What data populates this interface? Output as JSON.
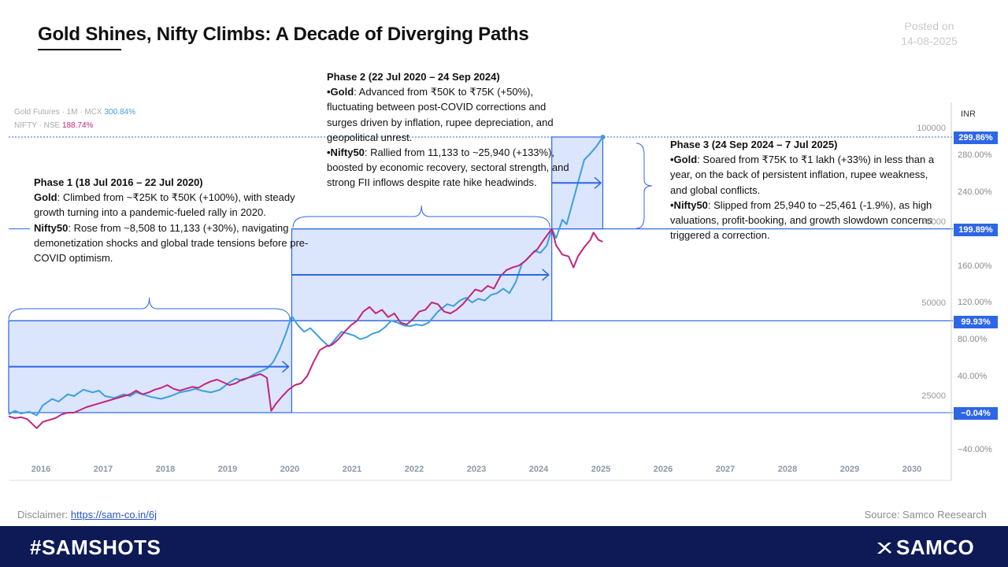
{
  "header": {
    "title": "Gold Shines, Nifty Climbs: A Decade of Diverging Paths",
    "posted_label": "Posted on",
    "posted_date": "14-08-2025"
  },
  "legend": {
    "gold_label": "Gold Futures · 1M · MCX",
    "gold_value": "300.84%",
    "nifty_label": "NIFTY · NSE",
    "nifty_value": "188.74%"
  },
  "phases": {
    "p1": {
      "title": "Phase 1 (18 Jul 2016 – 22 Jul 2020)",
      "gold_label": "Gold",
      "gold_text": ": Climbed from  ~₹25K to ₹50K (+100%), with steady growth turning into a pandemic-fueled rally in 2020.",
      "nifty_label": "Nifty50",
      "nifty_text": ": Rose from ~8,508 to 11,133 (+30%), navigating demonetization shocks and global trade tensions before pre-COVID optimism."
    },
    "p2": {
      "title": "Phase 2 (22 Jul 2020 – 24 Sep 2024)",
      "gold_label": "•Gold",
      "gold_text": ": Advanced from ₹50K to ₹75K (+50%), fluctuating between post-COVID corrections and surges driven by inflation, rupee depreciation, and geopolitical unrest.",
      "nifty_label": "•Nifty50",
      "nifty_text": ": Rallied from 11,133 to ~25,940 (+133%), boosted by economic recovery, sectoral strength, and strong FII inflows despite rate hike headwinds."
    },
    "p3": {
      "title": "Phase 3 (24 Sep 2024 – 7 Jul 2025)",
      "gold_label": "•Gold",
      "gold_text": ": Soared from ₹75K to ₹1 lakh (+33%) in less than a year, on the back of persistent inflation, rupee weakness, and global conflicts.",
      "nifty_label": "•Nifty50",
      "nifty_text": ": Slipped from 25,940 to ~25,461 (-1.9%), as high valuations, profit-booking,  and growth slowdown concerns triggered a correction."
    }
  },
  "footer": {
    "disclaimer_label": "Disclaimer: ",
    "disclaimer_link": "https://sam-co.in/6j",
    "source": "Source: Samco Reesearch",
    "hashtag": "#SAMSHOTS",
    "brand": "SAMCO"
  },
  "chart_data": {
    "type": "line",
    "currency": "INR",
    "x_ticks": [
      "2016",
      "2017",
      "2018",
      "2019",
      "2020",
      "2021",
      "2022",
      "2023",
      "2024",
      "2025",
      "2026",
      "2027",
      "2028",
      "2029",
      "2030"
    ],
    "price_levels": [
      "100000",
      "75000",
      "50000",
      "25000"
    ],
    "pct_tags": [
      "299.86%",
      "199.89%",
      "99.93%",
      "−0.04%"
    ],
    "pct_ticks": [
      "280.00%",
      "240.00%",
      "160.00%",
      "120.00%",
      "80.00%",
      "40.00%",
      "−40.00%"
    ],
    "ylim_pct": [
      -45,
      320
    ],
    "colors": {
      "gold": "#3d9ee0",
      "nifty": "#c2257a",
      "accent": "#2d66e6",
      "band": "#dbe5fb"
    },
    "series": [
      {
        "name": "Gold Futures · 1M · MCX",
        "unit": "% change",
        "points": [
          [
            2016.0,
            -2
          ],
          [
            2016.1,
            2
          ],
          [
            2016.2,
            -1
          ],
          [
            2016.33,
            1
          ],
          [
            2016.45,
            -3
          ],
          [
            2016.55,
            8
          ],
          [
            2016.7,
            15
          ],
          [
            2016.8,
            12
          ],
          [
            2016.95,
            20
          ],
          [
            2017.05,
            18
          ],
          [
            2017.2,
            25
          ],
          [
            2017.35,
            22
          ],
          [
            2017.45,
            24
          ],
          [
            2017.55,
            18
          ],
          [
            2017.7,
            16
          ],
          [
            2017.85,
            20
          ],
          [
            2017.95,
            18
          ],
          [
            2018.05,
            22
          ],
          [
            2018.15,
            20
          ],
          [
            2018.3,
            17
          ],
          [
            2018.45,
            15
          ],
          [
            2018.6,
            18
          ],
          [
            2018.75,
            22
          ],
          [
            2018.9,
            24
          ],
          [
            2019.0,
            26
          ],
          [
            2019.1,
            24
          ],
          [
            2019.25,
            22
          ],
          [
            2019.4,
            25
          ],
          [
            2019.55,
            33
          ],
          [
            2019.65,
            37
          ],
          [
            2019.75,
            35
          ],
          [
            2019.85,
            38
          ],
          [
            2019.95,
            42
          ],
          [
            2020.05,
            45
          ],
          [
            2020.15,
            48
          ],
          [
            2020.25,
            55
          ],
          [
            2020.35,
            68
          ],
          [
            2020.45,
            85
          ],
          [
            2020.55,
            105
          ],
          [
            2020.65,
            95
          ],
          [
            2020.75,
            88
          ],
          [
            2020.85,
            92
          ],
          [
            2020.95,
            85
          ],
          [
            2021.05,
            78
          ],
          [
            2021.15,
            72
          ],
          [
            2021.25,
            80
          ],
          [
            2021.35,
            88
          ],
          [
            2021.45,
            86
          ],
          [
            2021.55,
            84
          ],
          [
            2021.65,
            80
          ],
          [
            2021.75,
            82
          ],
          [
            2021.85,
            86
          ],
          [
            2021.95,
            88
          ],
          [
            2022.05,
            93
          ],
          [
            2022.15,
            100
          ],
          [
            2022.25,
            98
          ],
          [
            2022.35,
            95
          ],
          [
            2022.45,
            94
          ],
          [
            2022.55,
            96
          ],
          [
            2022.65,
            95
          ],
          [
            2022.75,
            98
          ],
          [
            2022.9,
            110
          ],
          [
            2023.05,
            118
          ],
          [
            2023.15,
            116
          ],
          [
            2023.25,
            122
          ],
          [
            2023.35,
            125
          ],
          [
            2023.45,
            120
          ],
          [
            2023.55,
            124
          ],
          [
            2023.65,
            122
          ],
          [
            2023.75,
            128
          ],
          [
            2023.85,
            130
          ],
          [
            2023.95,
            135
          ],
          [
            2024.05,
            130
          ],
          [
            2024.15,
            142
          ],
          [
            2024.25,
            162
          ],
          [
            2024.35,
            168
          ],
          [
            2024.45,
            176
          ],
          [
            2024.55,
            174
          ],
          [
            2024.65,
            182
          ],
          [
            2024.73,
            200
          ],
          [
            2024.8,
            190
          ],
          [
            2024.9,
            210
          ],
          [
            2024.97,
            205
          ],
          [
            2025.05,
            225
          ],
          [
            2025.15,
            250
          ],
          [
            2025.25,
            275
          ],
          [
            2025.35,
            282
          ],
          [
            2025.45,
            290
          ],
          [
            2025.55,
            300
          ]
        ]
      },
      {
        "name": "NIFTY · NSE",
        "unit": "% change",
        "points": [
          [
            2016.0,
            -4
          ],
          [
            2016.1,
            -6
          ],
          [
            2016.2,
            -5
          ],
          [
            2016.3,
            -7
          ],
          [
            2016.45,
            -17
          ],
          [
            2016.55,
            -10
          ],
          [
            2016.65,
            -8
          ],
          [
            2016.75,
            -6
          ],
          [
            2016.85,
            -2
          ],
          [
            2016.95,
            0
          ],
          [
            2017.05,
            0
          ],
          [
            2017.15,
            3
          ],
          [
            2017.25,
            6
          ],
          [
            2017.35,
            8
          ],
          [
            2017.45,
            10
          ],
          [
            2017.55,
            12
          ],
          [
            2017.65,
            14
          ],
          [
            2017.75,
            16
          ],
          [
            2017.85,
            18
          ],
          [
            2017.95,
            20
          ],
          [
            2018.05,
            24
          ],
          [
            2018.15,
            20
          ],
          [
            2018.25,
            22
          ],
          [
            2018.35,
            25
          ],
          [
            2018.45,
            27
          ],
          [
            2018.55,
            30
          ],
          [
            2018.65,
            26
          ],
          [
            2018.75,
            24
          ],
          [
            2018.85,
            26
          ],
          [
            2018.95,
            28
          ],
          [
            2019.05,
            27
          ],
          [
            2019.15,
            31
          ],
          [
            2019.25,
            34
          ],
          [
            2019.35,
            36
          ],
          [
            2019.45,
            33
          ],
          [
            2019.55,
            30
          ],
          [
            2019.65,
            32
          ],
          [
            2019.75,
            36
          ],
          [
            2019.85,
            38
          ],
          [
            2019.95,
            40
          ],
          [
            2020.05,
            42
          ],
          [
            2020.15,
            38
          ],
          [
            2020.22,
            2
          ],
          [
            2020.3,
            10
          ],
          [
            2020.4,
            18
          ],
          [
            2020.5,
            25
          ],
          [
            2020.6,
            30
          ],
          [
            2020.7,
            32
          ],
          [
            2020.8,
            40
          ],
          [
            2020.9,
            55
          ],
          [
            2021.0,
            68
          ],
          [
            2021.1,
            72
          ],
          [
            2021.2,
            74
          ],
          [
            2021.3,
            80
          ],
          [
            2021.4,
            88
          ],
          [
            2021.5,
            95
          ],
          [
            2021.6,
            100
          ],
          [
            2021.7,
            110
          ],
          [
            2021.8,
            115
          ],
          [
            2021.9,
            108
          ],
          [
            2022.0,
            112
          ],
          [
            2022.1,
            104
          ],
          [
            2022.2,
            108
          ],
          [
            2022.3,
            98
          ],
          [
            2022.4,
            96
          ],
          [
            2022.5,
            102
          ],
          [
            2022.6,
            110
          ],
          [
            2022.7,
            112
          ],
          [
            2022.8,
            120
          ],
          [
            2022.9,
            118
          ],
          [
            2023.0,
            110
          ],
          [
            2023.1,
            108
          ],
          [
            2023.2,
            112
          ],
          [
            2023.3,
            118
          ],
          [
            2023.4,
            126
          ],
          [
            2023.5,
            134
          ],
          [
            2023.6,
            132
          ],
          [
            2023.7,
            138
          ],
          [
            2023.8,
            135
          ],
          [
            2023.9,
            148
          ],
          [
            2024.0,
            155
          ],
          [
            2024.1,
            158
          ],
          [
            2024.2,
            160
          ],
          [
            2024.3,
            165
          ],
          [
            2024.4,
            172
          ],
          [
            2024.5,
            178
          ],
          [
            2024.6,
            188
          ],
          [
            2024.73,
            200
          ],
          [
            2024.8,
            182
          ],
          [
            2024.9,
            172
          ],
          [
            2025.0,
            170
          ],
          [
            2025.08,
            158
          ],
          [
            2025.15,
            170
          ],
          [
            2025.25,
            180
          ],
          [
            2025.35,
            188
          ],
          [
            2025.4,
            196
          ],
          [
            2025.48,
            188
          ],
          [
            2025.55,
            186
          ]
        ]
      }
    ]
  }
}
